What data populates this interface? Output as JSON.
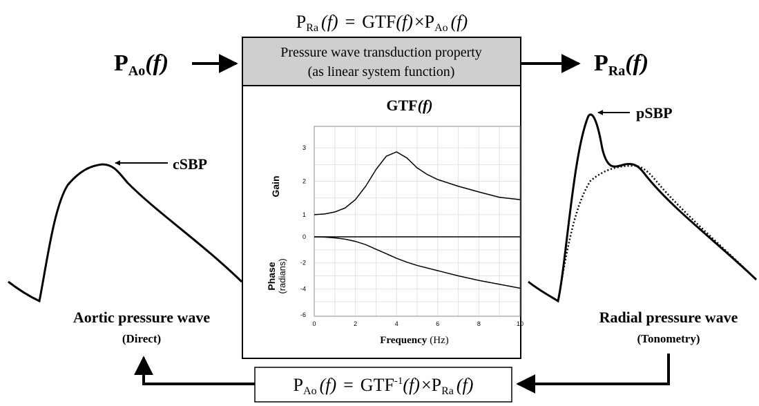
{
  "equations": {
    "top": {
      "lhs_base": "P",
      "lhs_sub": "Ra",
      "lhs_arg": "(f)",
      "eq": "=",
      "fn": "GTF",
      "fn_arg": "(f)",
      "times": "×",
      "rhs_base": "P",
      "rhs_sub": "Ao",
      "rhs_arg": "(f)"
    },
    "bottom": {
      "lhs_base": "P",
      "lhs_sub": "Ao",
      "lhs_arg": "(f)",
      "eq": "=",
      "fn": "GTF",
      "fn_sup": "-1",
      "fn_arg": "(f)",
      "times": "×",
      "rhs_base": "P",
      "rhs_sub": "Ra",
      "rhs_arg": "(f)"
    }
  },
  "input_label": {
    "base": "P",
    "sub": "Ao",
    "arg": "(f)"
  },
  "output_label": {
    "base": "P",
    "sub": "Ra",
    "arg": "(f)"
  },
  "center_box": {
    "header_line1": "Pressure wave transduction property",
    "header_line2": "(as linear system function)"
  },
  "gtf_plot": {
    "title_fn": "GTF",
    "title_arg": "(f)",
    "gain_label": "Gain",
    "phase_label": "Phase",
    "phase_unit": "(radians)",
    "xlabel": "Frequency",
    "xunit": "(Hz)",
    "x_ticks": [
      "0",
      "2",
      "4",
      "6",
      "8",
      "10"
    ],
    "gain_ticks": [
      "1",
      "2",
      "3"
    ],
    "phase_ticks": [
      "0",
      "-2",
      "-4",
      "-6"
    ]
  },
  "left_wave": {
    "title": "Aortic pressure wave",
    "subtitle": "(Direct)",
    "peak_label": "cSBP"
  },
  "right_wave": {
    "title": "Radial pressure wave",
    "subtitle": "(Tonometry)",
    "peak_label": "pSBP"
  },
  "chart_data": [
    {
      "type": "line",
      "panel": "gain",
      "xlim": [
        0,
        10
      ],
      "ylim": [
        0.5,
        3.5
      ],
      "ylabel": "Gain",
      "grid": true,
      "x": [
        0,
        0.5,
        1,
        1.5,
        2,
        2.5,
        3,
        3.5,
        4,
        4.5,
        5,
        5.5,
        6,
        7,
        8,
        9,
        10
      ],
      "values": [
        1.0,
        1.02,
        1.08,
        1.2,
        1.45,
        1.85,
        2.35,
        2.75,
        2.88,
        2.7,
        2.4,
        2.2,
        2.05,
        1.85,
        1.68,
        1.52,
        1.45
      ]
    },
    {
      "type": "line",
      "panel": "phase",
      "xlim": [
        0,
        10
      ],
      "ylim": [
        -6,
        0
      ],
      "xlabel": "Frequency (Hz)",
      "ylabel": "Phase (radians)",
      "grid": true,
      "x": [
        0,
        0.5,
        1,
        1.5,
        2,
        2.5,
        3,
        3.5,
        4,
        4.5,
        5,
        6,
        7,
        8,
        9,
        10
      ],
      "values": [
        0,
        -0.02,
        -0.08,
        -0.18,
        -0.35,
        -0.6,
        -0.95,
        -1.3,
        -1.65,
        -1.95,
        -2.2,
        -2.6,
        -3.0,
        -3.35,
        -3.65,
        -3.95
      ]
    }
  ]
}
